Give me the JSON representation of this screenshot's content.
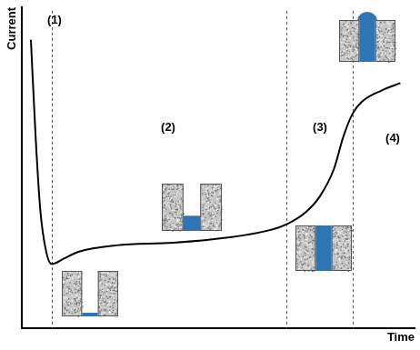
{
  "chart_data": {
    "type": "line",
    "x_label": "Time",
    "y_label": "Current",
    "x": [
      2.4,
      3.6,
      4.8,
      6.3,
      7.7,
      10.8,
      14.5,
      24.1,
      38.6,
      53.0,
      62.7,
      67.5,
      72.3,
      75.9,
      79.5,
      81.9,
      84.3,
      86.7,
      91.6,
      96.4
    ],
    "values": [
      89.9,
      59.8,
      36.8,
      23.9,
      20.1,
      21.8,
      23.9,
      25.9,
      26.7,
      28.4,
      30.5,
      32.5,
      36.2,
      41.1,
      49.7,
      59.8,
      67.0,
      70.7,
      74.1,
      76.4
    ],
    "boundaries": [
      7.7,
      67.5,
      84.3
    ],
    "annotations": [
      "(1)",
      "(2)",
      "(3)",
      "(4)"
    ],
    "color": "#000000",
    "marker": "none",
    "line_style": "solid",
    "xlim": [
      0,
      100
    ],
    "ylim": [
      0,
      100
    ],
    "grid": false,
    "tick_labels": false
  }
}
